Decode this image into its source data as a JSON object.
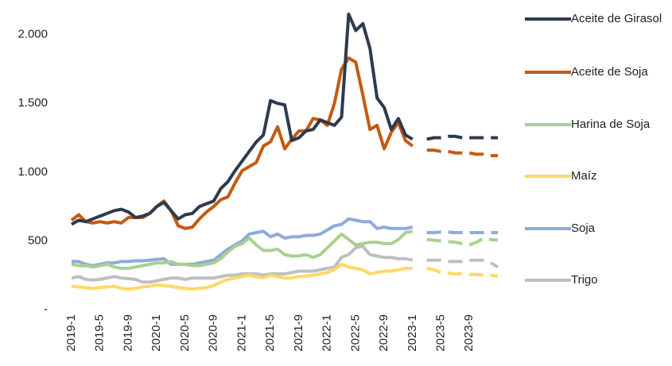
{
  "chart_data": {
    "type": "line",
    "categories": [
      "2019-1",
      null,
      null,
      null,
      "2019-5",
      null,
      null,
      null,
      "2019-9",
      null,
      null,
      null,
      "2020-1",
      null,
      null,
      null,
      "2020-5",
      null,
      null,
      null,
      "2020-9",
      null,
      null,
      null,
      "2021-1",
      null,
      null,
      null,
      "2021-5",
      null,
      null,
      null,
      "2021-9",
      null,
      null,
      null,
      "2022-1",
      null,
      null,
      null,
      "2022-5",
      null,
      null,
      null,
      "2022-9",
      null,
      null,
      null,
      "2023-1",
      null,
      null,
      null,
      "2023-5",
      null,
      null,
      null,
      "2023-9",
      null,
      null,
      null,
      null
    ],
    "ylim": [
      0,
      2200
    ],
    "yticks": [
      {
        "value": 0,
        "label": "-"
      },
      500,
      {
        "value": 1000,
        "label": "1.000"
      },
      {
        "value": 1500,
        "label": "1.500"
      },
      {
        "value": 2000,
        "label": "2.000"
      }
    ],
    "grid": false,
    "legend": "right",
    "series": [
      {
        "name": "Aceite de Girasol",
        "color": "#2e3a4f",
        "values": [
          620,
          650,
          640,
          660,
          680,
          700,
          720,
          730,
          710,
          670,
          680,
          700,
          750,
          780,
          720,
          660,
          690,
          700,
          750,
          770,
          790,
          880,
          930,
          1010,
          1080,
          1150,
          1220,
          1270,
          1520,
          1500,
          1490,
          1230,
          1250,
          1300,
          1310,
          1380,
          1360,
          1340,
          1400,
          2150,
          2030,
          2080,
          1900,
          1540,
          1470,
          1310,
          1390,
          1270,
          1240,
          null,
          null,
          null,
          null,
          null,
          null,
          null,
          null,
          null,
          null,
          null,
          null
        ],
        "forecast_values": [
          null,
          null,
          null,
          null,
          null,
          null,
          null,
          null,
          null,
          null,
          null,
          null,
          null,
          null,
          null,
          null,
          null,
          null,
          null,
          null,
          null,
          null,
          null,
          null,
          null,
          null,
          null,
          null,
          null,
          null,
          null,
          null,
          null,
          null,
          null,
          null,
          null,
          null,
          null,
          null,
          null,
          null,
          null,
          null,
          null,
          null,
          null,
          null,
          null,
          null,
          1240,
          1250,
          1250,
          1260,
          1260,
          1250,
          1250,
          1250,
          1250,
          1250,
          1250
        ]
      },
      {
        "name": "Aceite de Soja",
        "color": "#c55a11",
        "values": [
          650,
          690,
          640,
          630,
          640,
          630,
          640,
          630,
          670,
          670,
          670,
          700,
          750,
          790,
          720,
          610,
          590,
          600,
          660,
          710,
          750,
          800,
          820,
          920,
          1010,
          1040,
          1070,
          1190,
          1220,
          1330,
          1170,
          1240,
          1300,
          1300,
          1390,
          1380,
          1340,
          1500,
          1750,
          1830,
          1800,
          1560,
          1310,
          1340,
          1170,
          1290,
          1360,
          1230,
          1190,
          null,
          null,
          null,
          null,
          null,
          null,
          null,
          null,
          null,
          null,
          null,
          null
        ],
        "forecast_values": [
          null,
          null,
          null,
          null,
          null,
          null,
          null,
          null,
          null,
          null,
          null,
          null,
          null,
          null,
          null,
          null,
          null,
          null,
          null,
          null,
          null,
          null,
          null,
          null,
          null,
          null,
          null,
          null,
          null,
          null,
          null,
          null,
          null,
          null,
          null,
          null,
          null,
          null,
          null,
          null,
          null,
          null,
          null,
          null,
          null,
          null,
          null,
          null,
          null,
          null,
          1160,
          1160,
          1150,
          1150,
          1140,
          1140,
          1140,
          1130,
          1130,
          1120,
          1120
        ]
      },
      {
        "name": "Harina de Soja",
        "color": "#a9d18e",
        "values": [
          330,
          320,
          320,
          310,
          320,
          330,
          310,
          300,
          300,
          310,
          320,
          330,
          340,
          340,
          350,
          330,
          330,
          320,
          320,
          330,
          340,
          370,
          420,
          460,
          480,
          520,
          470,
          430,
          430,
          440,
          400,
          390,
          390,
          400,
          380,
          400,
          450,
          500,
          550,
          510,
          470,
          480,
          490,
          490,
          480,
          480,
          510,
          560,
          570,
          null,
          null,
          null,
          null,
          null,
          null,
          null,
          null,
          null,
          null,
          null,
          null
        ],
        "forecast_values": [
          null,
          null,
          null,
          null,
          null,
          null,
          null,
          null,
          null,
          null,
          null,
          null,
          null,
          null,
          null,
          null,
          null,
          null,
          null,
          null,
          null,
          null,
          null,
          null,
          null,
          null,
          null,
          null,
          null,
          null,
          null,
          null,
          null,
          null,
          null,
          null,
          null,
          null,
          null,
          null,
          null,
          null,
          null,
          null,
          null,
          null,
          null,
          null,
          null,
          null,
          510,
          505,
          500,
          495,
          490,
          480,
          470,
          490,
          520,
          510,
          505
        ]
      },
      {
        "name": "Maíz",
        "color": "#ffd966",
        "values": [
          170,
          165,
          160,
          155,
          160,
          165,
          170,
          155,
          150,
          155,
          165,
          170,
          180,
          175,
          170,
          160,
          155,
          150,
          155,
          160,
          175,
          200,
          220,
          230,
          240,
          250,
          240,
          230,
          250,
          240,
          230,
          230,
          240,
          245,
          250,
          260,
          270,
          290,
          330,
          310,
          300,
          290,
          260,
          270,
          280,
          280,
          290,
          300,
          300,
          null,
          null,
          null,
          null,
          null,
          null,
          null,
          null,
          null,
          null,
          null,
          null
        ],
        "forecast_values": [
          null,
          null,
          null,
          null,
          null,
          null,
          null,
          null,
          null,
          null,
          null,
          null,
          null,
          null,
          null,
          null,
          null,
          null,
          null,
          null,
          null,
          null,
          null,
          null,
          null,
          null,
          null,
          null,
          null,
          null,
          null,
          null,
          null,
          null,
          null,
          null,
          null,
          null,
          null,
          null,
          null,
          null,
          null,
          null,
          null,
          null,
          null,
          null,
          null,
          null,
          300,
          290,
          270,
          265,
          260,
          260,
          255,
          255,
          250,
          250,
          245
        ]
      },
      {
        "name": "Soja",
        "color": "#8faadc",
        "values": [
          350,
          350,
          330,
          320,
          330,
          340,
          340,
          350,
          350,
          355,
          355,
          360,
          365,
          370,
          330,
          330,
          330,
          330,
          340,
          350,
          360,
          400,
          440,
          470,
          500,
          550,
          560,
          570,
          530,
          550,
          520,
          530,
          530,
          540,
          540,
          550,
          580,
          610,
          620,
          660,
          650,
          640,
          640,
          590,
          600,
          590,
          590,
          590,
          600,
          null,
          null,
          null,
          null,
          null,
          null,
          null,
          null,
          null,
          null,
          null,
          null
        ],
        "forecast_values": [
          null,
          null,
          null,
          null,
          null,
          null,
          null,
          null,
          null,
          null,
          null,
          null,
          null,
          null,
          null,
          null,
          null,
          null,
          null,
          null,
          null,
          null,
          null,
          null,
          null,
          null,
          null,
          null,
          null,
          null,
          null,
          null,
          null,
          null,
          null,
          null,
          null,
          null,
          null,
          null,
          null,
          null,
          null,
          null,
          null,
          null,
          null,
          null,
          null,
          null,
          560,
          560,
          565,
          565,
          560,
          560,
          560,
          560,
          560,
          560,
          560
        ]
      },
      {
        "name": "Trigo",
        "color": "#bfbfbf",
        "values": [
          230,
          240,
          220,
          215,
          220,
          230,
          240,
          230,
          225,
          220,
          200,
          200,
          210,
          220,
          230,
          230,
          220,
          230,
          230,
          230,
          230,
          240,
          250,
          250,
          260,
          260,
          260,
          250,
          260,
          260,
          260,
          270,
          280,
          280,
          280,
          290,
          300,
          310,
          380,
          400,
          450,
          460,
          400,
          390,
          380,
          380,
          370,
          370,
          360,
          null,
          null,
          null,
          null,
          null,
          null,
          null,
          null,
          null,
          null,
          null,
          null
        ],
        "forecast_values": [
          null,
          null,
          null,
          null,
          null,
          null,
          null,
          null,
          null,
          null,
          null,
          null,
          null,
          null,
          null,
          null,
          null,
          null,
          null,
          null,
          null,
          null,
          null,
          null,
          null,
          null,
          null,
          null,
          null,
          null,
          null,
          null,
          null,
          null,
          null,
          null,
          null,
          null,
          null,
          null,
          null,
          null,
          null,
          null,
          null,
          null,
          null,
          null,
          null,
          null,
          360,
          360,
          360,
          350,
          350,
          350,
          360,
          360,
          360,
          340,
          310
        ]
      }
    ]
  }
}
